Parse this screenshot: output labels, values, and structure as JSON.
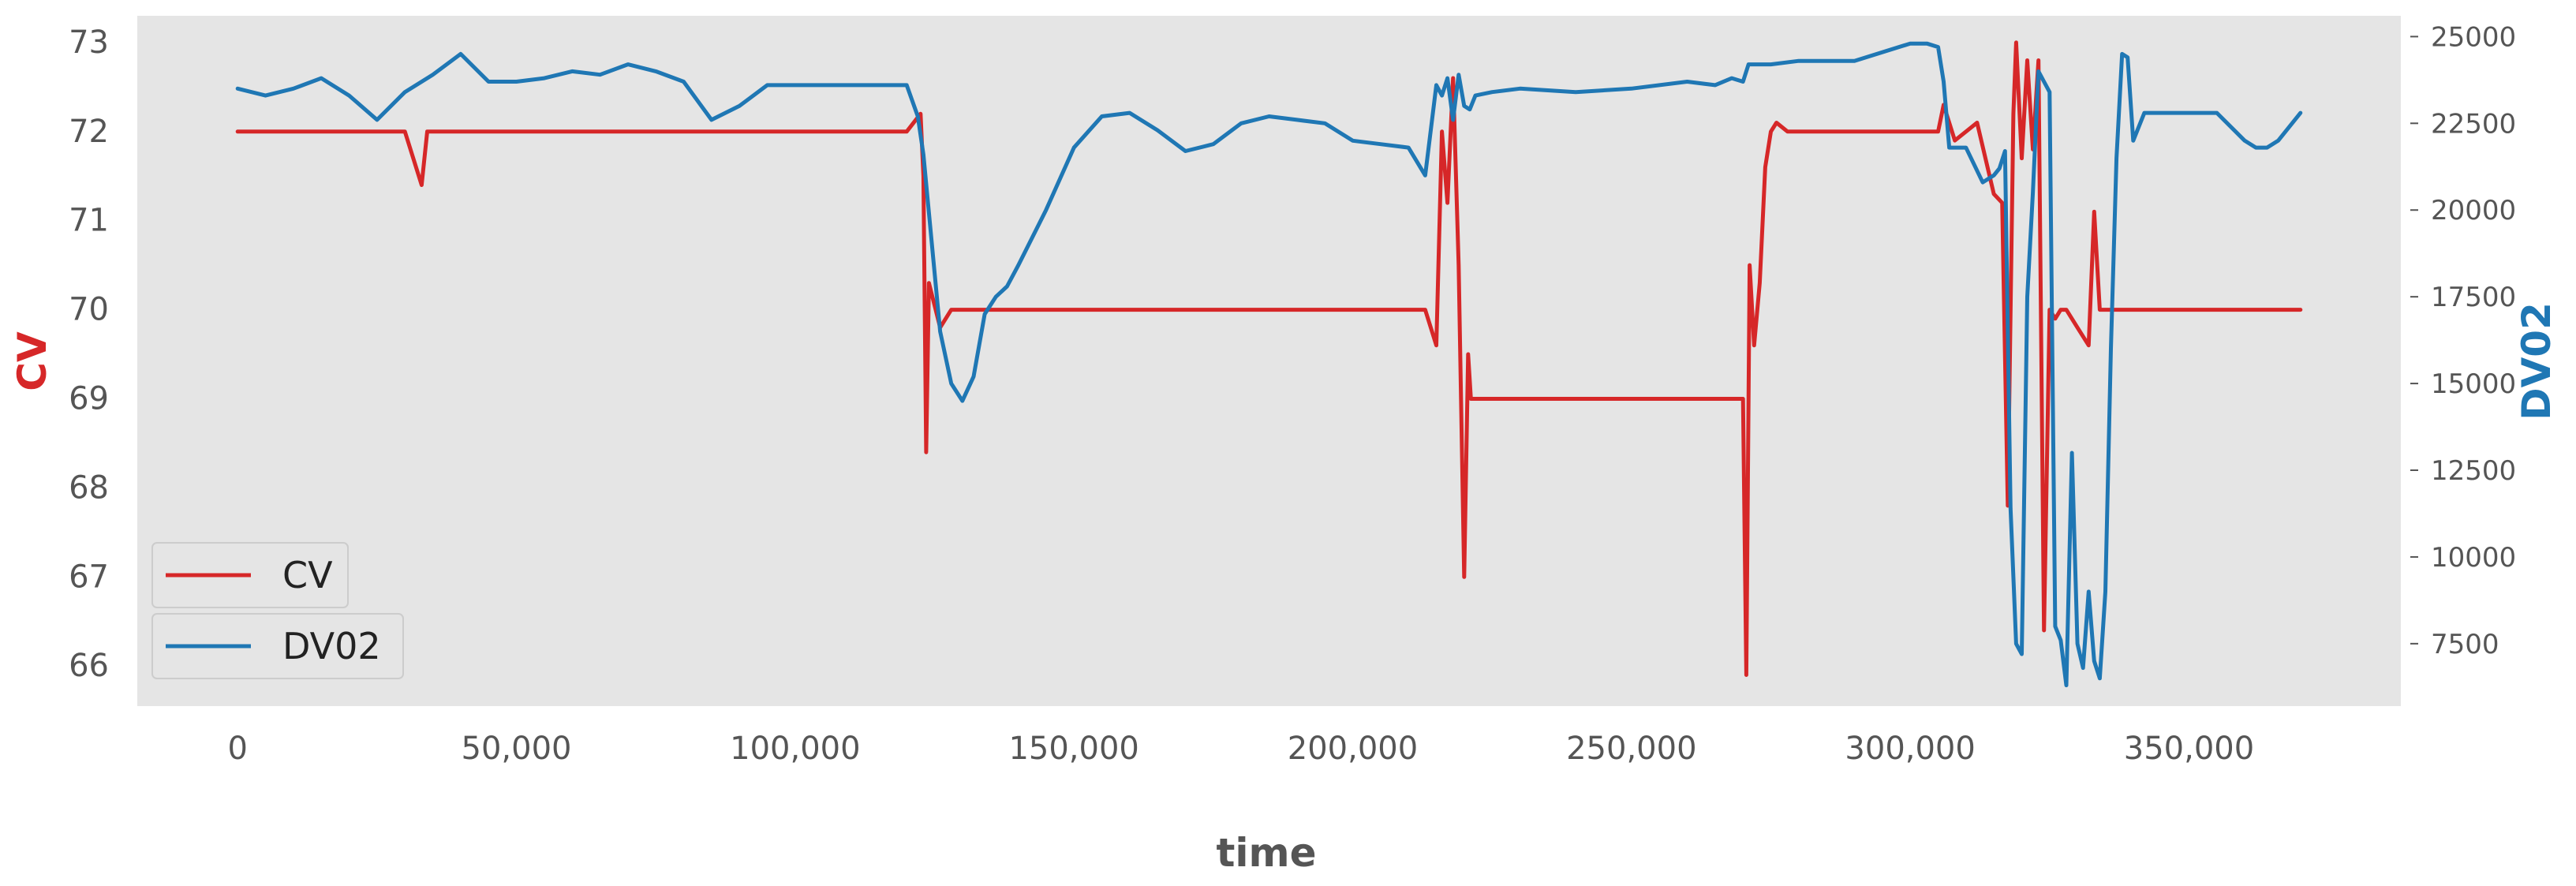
{
  "chart_data": {
    "type": "line",
    "xlabel": "time",
    "ylabel": "CV",
    "y2label": "DV02",
    "xlim": [
      -18000,
      388000
    ],
    "ylim": [
      65.55,
      73.3
    ],
    "y2lim": [
      5700,
      25600
    ],
    "x_ticks": [
      0,
      50000,
      100000,
      150000,
      200000,
      250000,
      300000,
      350000
    ],
    "x_tick_labels": [
      "0",
      "50,000",
      "100,000",
      "150,000",
      "200,000",
      "250,000",
      "300,000",
      "350,000"
    ],
    "y_ticks": [
      66,
      67,
      68,
      69,
      70,
      71,
      72,
      73
    ],
    "y_tick_labels": [
      "66",
      "67",
      "68",
      "69",
      "70",
      "71",
      "72",
      "73"
    ],
    "y2_ticks": [
      7500,
      10000,
      12500,
      15000,
      17500,
      20000,
      22500,
      25000
    ],
    "y2_tick_labels": [
      "7500",
      "10000",
      "12500",
      "15000",
      "17500",
      "20000",
      "22500",
      "25000"
    ],
    "grid": false,
    "legend": {
      "position": "lower-left",
      "entries": [
        "CV",
        "DV02"
      ]
    },
    "colors": {
      "CV": "#d62728",
      "DV02": "#1f77b4",
      "plot_bg": "#e5e5e5"
    },
    "series": [
      {
        "name": "CV",
        "axis": "left",
        "x": [
          0,
          30000,
          33000,
          34000,
          60000,
          100000,
          120000,
          122500,
          123000,
          123500,
          124000,
          126000,
          128000,
          140000,
          160000,
          180000,
          200000,
          213000,
          215000,
          216000,
          217000,
          218000,
          219000,
          220000,
          220700,
          221200,
          222000,
          230000,
          250000,
          260000,
          270000,
          270600,
          271200,
          272000,
          273000,
          274000,
          275000,
          276000,
          278000,
          290000,
          300000,
          305000,
          306000,
          308000,
          310000,
          312000,
          315000,
          316500,
          317500,
          318500,
          319000,
          320000,
          321000,
          322000,
          323000,
          324000,
          325000,
          326000,
          327000,
          328000,
          330000,
          332000,
          333000,
          334000,
          335000,
          337000,
          339000,
          340000,
          345000,
          355000,
          366000,
          370000
        ],
        "values": [
          72.0,
          72.0,
          71.4,
          72.0,
          72.0,
          72.0,
          72.0,
          72.2,
          71.5,
          68.4,
          70.3,
          69.8,
          70.0,
          70.0,
          70.0,
          70.0,
          70.0,
          70.0,
          69.6,
          72.0,
          71.2,
          72.6,
          70.5,
          67.0,
          69.5,
          69.0,
          69.0,
          69.0,
          69.0,
          69.0,
          69.0,
          65.9,
          70.5,
          69.6,
          70.3,
          71.6,
          72.0,
          72.1,
          72.0,
          72.0,
          72.0,
          72.0,
          72.3,
          71.9,
          72.0,
          72.1,
          71.3,
          71.2,
          67.8,
          72.2,
          73.0,
          71.7,
          72.8,
          71.8,
          72.8,
          66.4,
          70.0,
          69.9,
          70.0,
          70.0,
          69.8,
          69.6,
          71.1,
          70.0,
          70.0,
          70.0,
          70.0,
          70.0,
          70.0,
          70.0,
          70.0,
          70.0
        ]
      },
      {
        "name": "DV02",
        "axis": "right",
        "x": [
          0,
          5000,
          10000,
          15000,
          20000,
          25000,
          30000,
          35000,
          40000,
          45000,
          50000,
          55000,
          60000,
          65000,
          70000,
          75000,
          80000,
          85000,
          90000,
          95000,
          100000,
          105000,
          110000,
          115000,
          120000,
          122000,
          123000,
          126000,
          128000,
          130000,
          132000,
          134000,
          136000,
          138000,
          140000,
          145000,
          150000,
          155000,
          160000,
          165000,
          170000,
          175000,
          180000,
          185000,
          190000,
          195000,
          200000,
          205000,
          210000,
          213000,
          215000,
          216000,
          217000,
          218000,
          219000,
          220000,
          221000,
          222000,
          225000,
          230000,
          240000,
          250000,
          260000,
          265000,
          268000,
          270000,
          271000,
          272000,
          275000,
          280000,
          290000,
          300000,
          303000,
          305000,
          306000,
          307000,
          310000,
          313000,
          315000,
          316000,
          317000,
          318000,
          319000,
          320000,
          321000,
          322000,
          323000,
          324000,
          325000,
          326000,
          327000,
          328000,
          329000,
          330000,
          331000,
          332000,
          333000,
          334000,
          335000,
          336000,
          337000,
          338000,
          339000,
          340000,
          342000,
          345000,
          350000,
          355000,
          360000,
          362000,
          364000,
          366000,
          370000
        ],
        "values": [
          23500,
          23300,
          23500,
          23800,
          23300,
          22600,
          23400,
          23900,
          24500,
          23700,
          23700,
          23800,
          24000,
          23900,
          24200,
          24000,
          23700,
          22600,
          23000,
          23600,
          23600,
          23600,
          23600,
          23600,
          23600,
          22700,
          21600,
          16500,
          15000,
          14500,
          15200,
          17000,
          17500,
          17800,
          18400,
          20000,
          21800,
          22700,
          22800,
          22300,
          21700,
          21900,
          22500,
          22700,
          22600,
          22500,
          22000,
          21900,
          21800,
          21000,
          23600,
          23300,
          23800,
          22600,
          23900,
          23000,
          22900,
          23300,
          23400,
          23500,
          23400,
          23500,
          23700,
          23600,
          23800,
          23700,
          24200,
          24200,
          24200,
          24300,
          24300,
          24800,
          24800,
          24700,
          23700,
          21800,
          21800,
          20800,
          21000,
          21200,
          21700,
          11400,
          7500,
          7200,
          17500,
          20500,
          24000,
          23700,
          23400,
          8000,
          7600,
          6300,
          13000,
          7500,
          6800,
          9000,
          7000,
          6500,
          9000,
          16000,
          21500,
          24500,
          24400,
          22000,
          22800,
          22800,
          22800,
          22800,
          22000,
          21800,
          21800,
          22000,
          22800
        ]
      }
    ]
  }
}
